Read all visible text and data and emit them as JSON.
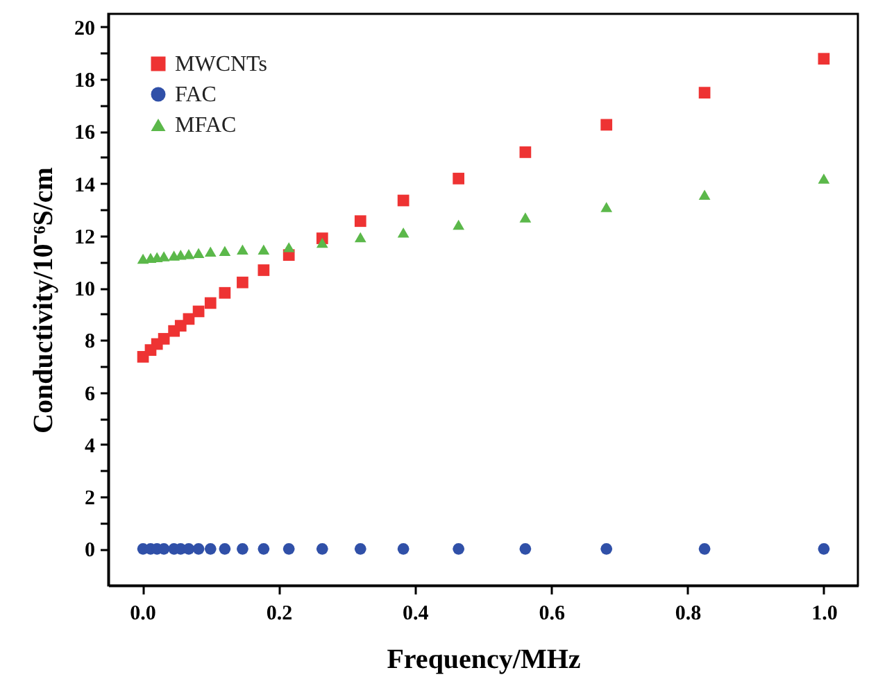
{
  "chart_data": {
    "type": "scatter",
    "xlabel": "Frequency/MHz",
    "ylabel": "Conductivity/10⁻⁶S/cm",
    "x": [
      0.001,
      0.0121,
      0.0215,
      0.0316,
      0.0464,
      0.0562,
      0.0681,
      0.0825,
      0.1,
      0.121,
      0.147,
      0.178,
      0.215,
      0.264,
      0.32,
      0.383,
      0.464,
      0.562,
      0.681,
      0.825,
      1.0
    ],
    "series": [
      {
        "name": "MWCNTs",
        "color": "#ee3333",
        "marker": "square",
        "values": [
          7.36,
          7.62,
          7.85,
          8.05,
          8.35,
          8.55,
          8.81,
          9.1,
          9.42,
          9.81,
          10.21,
          10.68,
          11.26,
          11.9,
          12.56,
          13.35,
          14.19,
          15.2,
          16.25,
          17.48,
          18.78
        ]
      },
      {
        "name": "FAC",
        "color": "#3050a8",
        "marker": "circle",
        "values": [
          0,
          0,
          0,
          0,
          0,
          0,
          0,
          0,
          0,
          0,
          0,
          0,
          0,
          0,
          0,
          0,
          0,
          0,
          0,
          0,
          0
        ]
      },
      {
        "name": "MFAC",
        "color": "#5bb84a",
        "marker": "triangle",
        "values": [
          11.12,
          11.15,
          11.18,
          11.21,
          11.24,
          11.27,
          11.3,
          11.34,
          11.39,
          11.42,
          11.47,
          11.47,
          11.56,
          11.73,
          11.94,
          12.12,
          12.42,
          12.7,
          13.1,
          13.57,
          14.19
        ]
      }
    ],
    "xlim": [
      -0.05,
      1.05
    ],
    "ylim": [
      -1.4,
      20.5
    ],
    "xticks": [
      {
        "value": 0,
        "label": "0.0"
      },
      0.2,
      0.4,
      0.6,
      0.8,
      {
        "value": 1,
        "label": "1.0"
      }
    ],
    "yticks": [
      0,
      {
        "value": 1,
        "label": null
      },
      2,
      {
        "value": 3,
        "label": null
      },
      4,
      {
        "value": 5,
        "label": null
      },
      6,
      {
        "value": 7,
        "label": null
      },
      8,
      {
        "value": 9,
        "label": null
      },
      10,
      {
        "value": 11,
        "label": null
      },
      12,
      {
        "value": 13,
        "label": null
      },
      14,
      {
        "value": 15,
        "label": null
      },
      16,
      {
        "value": 17,
        "label": null
      },
      18,
      {
        "value": 19,
        "label": null
      },
      20
    ],
    "legend": "top left",
    "grid": false
  }
}
